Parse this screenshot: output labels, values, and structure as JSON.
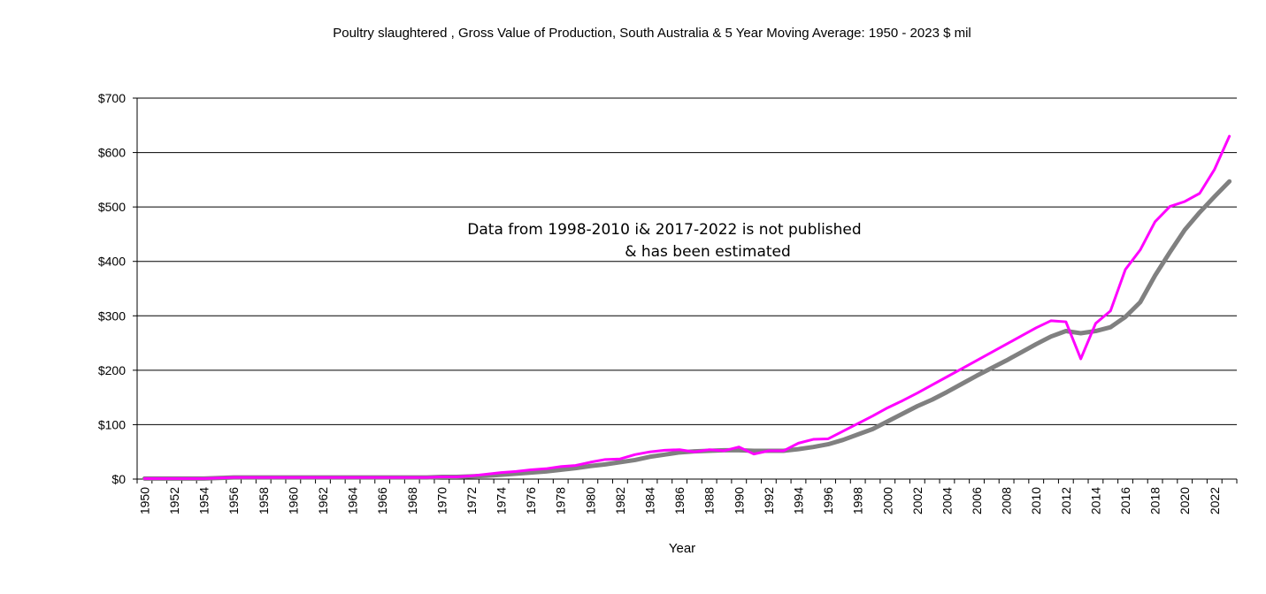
{
  "chart_data": {
    "type": "line",
    "title": "Poultry slaughtered , Gross Value of Production, South Australia & 5 Year Moving Average: 1950 - 2023 $ mil",
    "xlabel": "Year",
    "ylabel": "",
    "ylim": [
      0,
      700
    ],
    "ytick_labels": [
      "$0",
      "$100",
      "$200",
      "$300",
      "$400",
      "$500",
      "$600",
      "$700"
    ],
    "ytick_values": [
      0,
      100,
      200,
      300,
      400,
      500,
      600,
      700
    ],
    "x": [
      1950,
      1951,
      1952,
      1953,
      1954,
      1955,
      1956,
      1957,
      1958,
      1959,
      1960,
      1961,
      1962,
      1963,
      1964,
      1965,
      1966,
      1967,
      1968,
      1969,
      1970,
      1971,
      1972,
      1973,
      1974,
      1975,
      1976,
      1977,
      1978,
      1979,
      1980,
      1981,
      1982,
      1983,
      1984,
      1985,
      1986,
      1987,
      1988,
      1989,
      1990,
      1991,
      1992,
      1993,
      1994,
      1995,
      1996,
      1997,
      1998,
      1999,
      2000,
      2001,
      2002,
      2003,
      2004,
      2005,
      2006,
      2007,
      2008,
      2009,
      2010,
      2011,
      2012,
      2013,
      2014,
      2015,
      2016,
      2017,
      2018,
      2019,
      2020,
      2021,
      2022,
      2023
    ],
    "xtick_labels": [
      "1950",
      "1952",
      "1954",
      "1956",
      "1958",
      "1960",
      "1962",
      "1964",
      "1966",
      "1968",
      "1970",
      "1972",
      "1974",
      "1976",
      "1978",
      "1980",
      "1982",
      "1984",
      "1986",
      "1988",
      "1990",
      "1992",
      "1994",
      "1996",
      "1998",
      "2000",
      "2002",
      "2004",
      "2006",
      "2008",
      "2010",
      "2012",
      "2014",
      "2016",
      "2018",
      "2020",
      "2022"
    ],
    "grid": true,
    "series": [
      {
        "name": "Gross Value of Production",
        "color": "#ff00ff",
        "values": [
          1,
          1,
          1,
          1,
          1,
          2,
          3,
          3,
          3,
          3,
          3,
          3,
          3,
          3,
          3,
          3,
          3,
          3,
          3,
          3,
          4,
          4,
          6,
          9,
          12,
          14,
          17,
          19,
          23,
          25,
          31,
          36,
          37,
          45,
          50,
          53,
          54,
          50,
          54,
          52,
          59,
          46,
          52,
          52,
          66,
          73,
          74,
          88,
          102,
          116,
          131,
          144,
          158,
          173,
          188,
          203,
          218,
          233,
          248,
          263,
          278,
          291,
          289,
          221,
          286,
          309,
          385,
          421,
          473,
          501,
          510,
          525,
          569,
          630
        ]
      },
      {
        "name": "5 Year Moving Average",
        "color": "#808080",
        "values": [
          1,
          1,
          1,
          1,
          1,
          2,
          3,
          3,
          3,
          3,
          3,
          3,
          3,
          3,
          3,
          3,
          3,
          3,
          3,
          3,
          4,
          4,
          5,
          6,
          8,
          10,
          12,
          14,
          17,
          20,
          24,
          27,
          31,
          35,
          41,
          45,
          49,
          51,
          52,
          53,
          53,
          52,
          52,
          52,
          55,
          59,
          64,
          72,
          82,
          92,
          106,
          120,
          134,
          146,
          160,
          175,
          190,
          204,
          218,
          233,
          248,
          262,
          272,
          268,
          272,
          279,
          298,
          325,
          374,
          417,
          458,
          490,
          519,
          547
        ]
      }
    ],
    "annotation": {
      "line1": "Data from 1998-2010 i& 2017-2022 is not published",
      "line2": "& has been estimated"
    }
  }
}
